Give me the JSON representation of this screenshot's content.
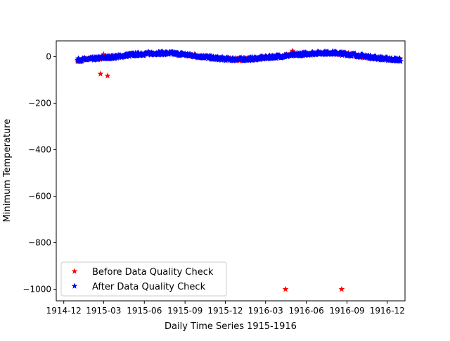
{
  "chart_data": {
    "type": "scatter",
    "title": "",
    "xlabel": "Daily Time Series 1915-1916",
    "ylabel": "Minimum Temperature",
    "x_ticks": [
      "1914-12",
      "1915-03",
      "1915-06",
      "1915-09",
      "1915-12",
      "1916-03",
      "1916-06",
      "1916-09",
      "1916-12"
    ],
    "x_tick_dates": [
      "1914-12-01",
      "1915-03-01",
      "1915-06-01",
      "1915-09-01",
      "1915-12-01",
      "1916-03-01",
      "1916-06-01",
      "1916-09-01",
      "1916-12-01"
    ],
    "y_ticks": [
      0,
      -200,
      -400,
      -600,
      -800,
      -1000
    ],
    "xlim": [
      "1914-11-14",
      "1917-01-10"
    ],
    "ylim": [
      -1050,
      68
    ],
    "grid": false,
    "legend_position": "lower-left",
    "marker": "star",
    "series": [
      {
        "name": "Before Data Quality Check",
        "color": "#ff0000",
        "points": [
          [
            "1915-02-22",
            -74
          ],
          [
            "1915-03-10",
            -82
          ],
          [
            "1915-03-01",
            10
          ],
          [
            "1916-05-01",
            25
          ],
          [
            "1916-04-15",
            -1000
          ],
          [
            "1916-08-20",
            -1000
          ],
          [
            "1916-10-10",
            -4
          ]
        ]
      },
      {
        "name": "After Data Quality Check",
        "color": "#0000ff",
        "curve": [
          [
            "1915-01-01",
            -15
          ],
          [
            "1915-02-01",
            -10
          ],
          [
            "1915-03-01",
            -5
          ],
          [
            "1915-04-01",
            0
          ],
          [
            "1915-05-01",
            8
          ],
          [
            "1915-06-01",
            12
          ],
          [
            "1915-07-01",
            15
          ],
          [
            "1915-08-01",
            14
          ],
          [
            "1915-09-01",
            9
          ],
          [
            "1915-10-01",
            2
          ],
          [
            "1915-11-01",
            -5
          ],
          [
            "1915-12-01",
            -10
          ],
          [
            "1916-01-01",
            -12
          ],
          [
            "1916-02-01",
            -9
          ],
          [
            "1916-03-01",
            -4
          ],
          [
            "1916-04-01",
            1
          ],
          [
            "1916-05-01",
            7
          ],
          [
            "1916-06-01",
            12
          ],
          [
            "1916-07-01",
            16
          ],
          [
            "1916-08-01",
            16
          ],
          [
            "1916-09-01",
            11
          ],
          [
            "1916-10-01",
            4
          ],
          [
            "1916-11-01",
            -4
          ],
          [
            "1916-12-01",
            -10
          ],
          [
            "1916-12-31",
            -14
          ]
        ]
      }
    ]
  }
}
